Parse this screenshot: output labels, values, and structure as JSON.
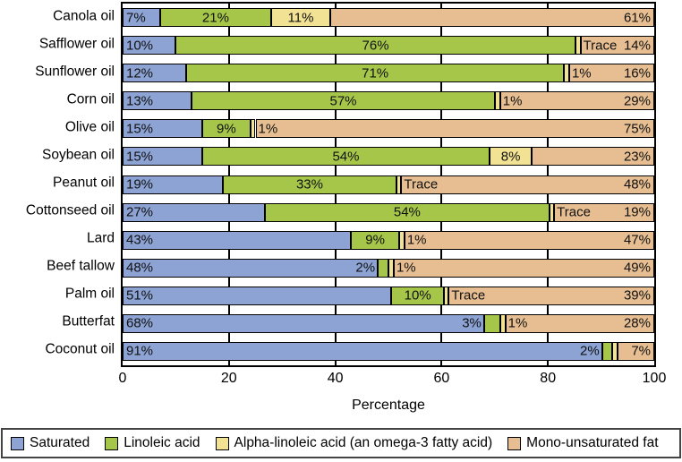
{
  "chart_data": {
    "type": "bar",
    "subtype": "horizontal-stacked",
    "xlabel": "Percentage",
    "xlim": [
      0,
      100
    ],
    "xticks": [
      "0",
      "20",
      "40",
      "60",
      "80",
      "100"
    ],
    "grid": "vertical-at-20-40-60-80",
    "legend_position": "bottom",
    "series_names": [
      "Saturated",
      "Linoleic acid",
      "Alpha-linoleic acid (an omega-3 fatty acid)",
      "Mono-unsaturated fat"
    ],
    "series_colors": [
      "#8ca3d4",
      "#a6c64a",
      "#f2e294",
      "#e6be92"
    ],
    "rows": [
      {
        "category": "Canola oil",
        "segments": [
          {
            "value": 7,
            "label": "7%"
          },
          {
            "value": 21,
            "label": "21%"
          },
          {
            "value": 11,
            "label": "11%"
          },
          {
            "value": 61,
            "label": "61%"
          }
        ]
      },
      {
        "category": "Safflower oil",
        "segments": [
          {
            "value": 10,
            "label": "10%"
          },
          {
            "value": 76,
            "label": "76%"
          },
          {
            "value": 0,
            "label": "Trace",
            "trace": true
          },
          {
            "value": 14,
            "label": "14%"
          }
        ]
      },
      {
        "category": "Sunflower oil",
        "segments": [
          {
            "value": 12,
            "label": "12%"
          },
          {
            "value": 71,
            "label": "71%"
          },
          {
            "value": 1,
            "label": "1%"
          },
          {
            "value": 16,
            "label": "16%"
          }
        ]
      },
      {
        "category": "Corn oil",
        "segments": [
          {
            "value": 13,
            "label": "13%"
          },
          {
            "value": 57,
            "label": "57%"
          },
          {
            "value": 1,
            "label": "1%"
          },
          {
            "value": 29,
            "label": "29%"
          }
        ]
      },
      {
        "category": "Olive oil",
        "segments": [
          {
            "value": 15,
            "label": "15%"
          },
          {
            "value": 9,
            "label": "9%"
          },
          {
            "value": 1,
            "label": "1%"
          },
          {
            "value": 75,
            "label": "75%"
          }
        ]
      },
      {
        "category": "Soybean oil",
        "segments": [
          {
            "value": 15,
            "label": "15%"
          },
          {
            "value": 54,
            "label": "54%"
          },
          {
            "value": 8,
            "label": "8%"
          },
          {
            "value": 23,
            "label": "23%"
          }
        ]
      },
      {
        "category": "Peanut oil",
        "segments": [
          {
            "value": 19,
            "label": "19%"
          },
          {
            "value": 33,
            "label": "33%"
          },
          {
            "value": 0,
            "label": "Trace",
            "trace": true
          },
          {
            "value": 48,
            "label": "48%"
          }
        ]
      },
      {
        "category": "Cottonseed oil",
        "segments": [
          {
            "value": 27,
            "label": "27%"
          },
          {
            "value": 54,
            "label": "54%"
          },
          {
            "value": 0,
            "label": "Trace",
            "trace": true
          },
          {
            "value": 19,
            "label": "19%"
          }
        ]
      },
      {
        "category": "Lard",
        "segments": [
          {
            "value": 43,
            "label": "43%"
          },
          {
            "value": 9,
            "label": "9%"
          },
          {
            "value": 1,
            "label": "1%"
          },
          {
            "value": 47,
            "label": "47%"
          }
        ]
      },
      {
        "category": "Beef tallow",
        "segments": [
          {
            "value": 48,
            "label": "48%"
          },
          {
            "value": 2,
            "label": "2%"
          },
          {
            "value": 1,
            "label": "1%"
          },
          {
            "value": 49,
            "label": "49%"
          }
        ]
      },
      {
        "category": "Palm oil",
        "segments": [
          {
            "value": 51,
            "label": "51%"
          },
          {
            "value": 10,
            "label": "10%"
          },
          {
            "value": 0,
            "label": "Trace",
            "trace": true
          },
          {
            "value": 39,
            "label": "39%"
          }
        ]
      },
      {
        "category": "Butterfat",
        "segments": [
          {
            "value": 68,
            "label": "68%"
          },
          {
            "value": 3,
            "label": "3%"
          },
          {
            "value": 1,
            "label": "1%"
          },
          {
            "value": 28,
            "label": "28%"
          }
        ]
      },
      {
        "category": "Coconut oil",
        "segments": [
          {
            "value": 91,
            "label": "91%"
          },
          {
            "value": 2,
            "label": "2%"
          },
          {
            "value": 0,
            "label": "",
            "trace": true
          },
          {
            "value": 7,
            "label": "7%"
          }
        ]
      }
    ]
  }
}
